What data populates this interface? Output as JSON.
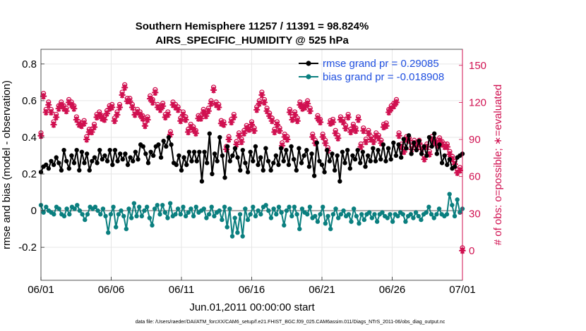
{
  "chart_data": {
    "type": "line",
    "title_line1": "Southern Hemisphere 11257 / 11391 = 98.824%",
    "title_line2": "AIRS_SPECIFIC_HUMIDITY @ 525 hPa",
    "xlabel": "Jun.01,2011 00:00:00 start",
    "ylabel_left": "rmse and bias (model - observation)",
    "ylabel_right": "# of obs: o=possible; ∗=evaluated",
    "footnote": "data file: /Users/raeder/DAI/ATM_forcXX/CAM6_setup/f.e21.FHIST_BGC.f09_025.CAM6assim.011/Diags_NTrS_2011-06/obs_diag_output.nc",
    "x_tick_labels": [
      "06/01",
      "06/06",
      "06/11",
      "06/16",
      "06/21",
      "06/26",
      "07/01"
    ],
    "x_tick_days": [
      0,
      5,
      10,
      15,
      20,
      25,
      30
    ],
    "x_range_days": [
      0,
      30
    ],
    "y_left": {
      "ticks": [
        -0.2,
        0,
        0.2,
        0.4,
        0.6,
        0.8
      ],
      "tick_labels": [
        "-0.2",
        "0",
        "0.2",
        "0.4",
        "0.6",
        "0.8"
      ],
      "range": [
        -0.38,
        0.88
      ]
    },
    "y_right": {
      "ticks": [
        0,
        30,
        60,
        90,
        120,
        150
      ],
      "tick_labels": [
        "0",
        "30",
        "60",
        "90",
        "120",
        "150"
      ],
      "range": [
        -24,
        163
      ]
    },
    "grid": true,
    "legend_position": "top-right",
    "colors": {
      "rmse": "#000000",
      "bias": "#0a7f7f",
      "obs": "#d01050",
      "legend_text": "#1f4fe0",
      "zero_line": "#aaaaaa"
    },
    "series": [
      {
        "name": "rmse grand pr = 0.29085",
        "axis": "left",
        "color": "#000000",
        "values": [
          0.21,
          0.24,
          0.25,
          0.23,
          0.27,
          0.25,
          0.29,
          0.26,
          0.22,
          0.33,
          0.27,
          0.23,
          0.3,
          0.26,
          0.33,
          0.22,
          0.32,
          0.26,
          0.31,
          0.22,
          0.27,
          0.29,
          0.26,
          0.33,
          0.28,
          0.3,
          0.27,
          0.33,
          0.25,
          0.33,
          0.27,
          0.31,
          0.28,
          0.31,
          0.25,
          0.29,
          0.27,
          0.32,
          0.28,
          0.36,
          0.35,
          0.31,
          0.26,
          0.32,
          0.3,
          0.35,
          0.36,
          0.29,
          0.38,
          0.35,
          0.4,
          0.36,
          0.26,
          0.25,
          0.3,
          0.22,
          0.29,
          0.25,
          0.32,
          0.27,
          0.32,
          0.27,
          0.32,
          0.16,
          0.32,
          0.26,
          0.42,
          0.2,
          0.31,
          0.27,
          0.4,
          0.3,
          0.18,
          0.35,
          0.27,
          0.3,
          0.34,
          0.29,
          0.22,
          0.33,
          0.26,
          0.21,
          0.32,
          0.27,
          0.35,
          0.25,
          0.29,
          0.22,
          0.34,
          0.27,
          0.22,
          0.26,
          0.3,
          0.25,
          0.34,
          0.27,
          0.33,
          0.25,
          0.35,
          0.28,
          0.22,
          0.34,
          0.26,
          0.3,
          0.33,
          0.24,
          0.31,
          0.19,
          0.37,
          0.27,
          0.25,
          0.21,
          0.33,
          0.27,
          0.31,
          0.22,
          0.3,
          0.16,
          0.32,
          0.26,
          0.33,
          0.23,
          0.3,
          0.28,
          0.33,
          0.26,
          0.32,
          0.24,
          0.3,
          0.27,
          0.34,
          0.27,
          0.33,
          0.28,
          0.36,
          0.27,
          0.34,
          0.28,
          0.37,
          0.3,
          0.36,
          0.29,
          0.39,
          0.34,
          0.41,
          0.31,
          0.37,
          0.33,
          0.38,
          0.31,
          0.35,
          0.3,
          0.4,
          0.35,
          0.42,
          0.31,
          0.36,
          0.26,
          0.3,
          0.25,
          0.28,
          0.23,
          0.24,
          0.29,
          0.3,
          0.31
        ]
      },
      {
        "name": "bias grand pr = -0.018908",
        "axis": "left",
        "color": "#0a7f7f",
        "values": [
          0.03,
          -0.01,
          0.02,
          0.0,
          -0.01,
          -0.02,
          0.02,
          0.01,
          -0.02,
          -0.03,
          0.01,
          -0.02,
          0.02,
          0.01,
          0.03,
          0.0,
          -0.02,
          -0.05,
          -0.02,
          0.02,
          0.01,
          0.02,
          0.0,
          -0.02,
          0.01,
          -0.03,
          -0.12,
          -0.02,
          0.02,
          -0.09,
          -0.02,
          0.0,
          -0.03,
          -0.1,
          0.01,
          -0.04,
          0.04,
          -0.03,
          0.02,
          -0.03,
          0.0,
          0.02,
          -0.04,
          -0.08,
          0.01,
          0.03,
          -0.02,
          0.03,
          -0.01,
          -0.04,
          0.04,
          -0.03,
          -0.02,
          0.01,
          -0.02,
          0.02,
          -0.03,
          -0.01,
          0.01,
          -0.03,
          0.02,
          -0.01,
          0.0,
          0.01,
          -0.04,
          -0.02,
          0.02,
          -0.03,
          -0.01,
          0.0,
          -0.05,
          0.02,
          -0.09,
          0.01,
          -0.14,
          -0.04,
          -0.12,
          -0.02,
          -0.14,
          0.01,
          -0.05,
          -0.02,
          0.02,
          -0.03,
          0.0,
          -0.02,
          0.02,
          0.03,
          0.0,
          -0.04,
          0.01,
          -0.02,
          0.02,
          -0.01,
          -0.08,
          0.0,
          0.02,
          -0.03,
          0.02,
          -0.02,
          -0.1,
          0.01,
          -0.01,
          -0.02,
          0.02,
          -0.04,
          -0.03,
          -0.06,
          -0.02,
          0.02,
          -0.07,
          -0.03,
          -0.1,
          -0.02,
          0.01,
          -0.04,
          -0.02,
          0.0,
          -0.03,
          -0.02,
          -0.06,
          0.01,
          -0.03,
          -0.07,
          -0.02,
          -0.05,
          -0.02,
          -0.01,
          -0.04,
          -0.02,
          -0.06,
          -0.02,
          -0.01,
          -0.03,
          -0.04,
          -0.02,
          -0.06,
          -0.02,
          -0.03,
          -0.01,
          -0.02,
          -0.06,
          -0.03,
          -0.02,
          -0.04,
          -0.01,
          -0.03,
          -0.05,
          -0.02,
          -0.01,
          0.02,
          -0.02,
          -0.04,
          -0.02,
          0.01,
          -0.02,
          -0.03,
          -0.02,
          0.09,
          0.03,
          -0.03,
          0.06,
          -0.01,
          0.01
        ]
      },
      {
        "name": "possible",
        "axis": "right",
        "marker": "o",
        "color": "#d01050",
        "values": [
          93,
          125,
          112,
          118,
          112,
          102,
          108,
          115,
          118,
          115,
          113,
          120,
          118,
          115,
          106,
          102,
          101,
          103,
          90,
          96,
          96,
          100,
          108,
          110,
          107,
          106,
          111,
          115,
          116,
          105,
          110,
          116,
          126,
          132,
          121,
          121,
          116,
          110,
          112,
          110,
          107,
          101,
          106,
          123,
          120,
          128,
          116,
          114,
          117,
          108,
          110,
          94,
          118,
          116,
          114,
          105,
          110,
          106,
          96,
          100,
          98,
          95,
          107,
          107,
          112,
          109,
          113,
          119,
          130,
          118,
          116,
          103,
          102,
          82,
          90,
          104,
          108,
          86,
          93,
          88,
          95,
          99,
          98,
          102,
          97,
          114,
          119,
          126,
          120,
          113,
          109,
          105,
          96,
          102,
          97,
          85,
          92,
          90,
          112,
          106,
          110,
          105,
          118,
          115,
          116,
          119,
          113,
          92,
          87,
          107,
          104,
          92,
          87,
          81,
          103,
          104,
          95,
          91,
          106,
          104,
          99,
          108,
          96,
          100,
          97,
          106,
          84,
          97,
          88,
          95,
          90,
          88,
          93,
          91,
          87,
          100,
          101,
          112,
          115,
          117,
          120,
          93,
          84,
          80,
          90,
          89,
          82,
          87,
          84,
          87,
          82,
          74,
          84,
          78,
          90,
          88,
          85,
          89,
          86,
          84,
          84,
          78,
          74,
          70,
          63,
          65,
          0
        ]
      },
      {
        "name": "evaluated",
        "axis": "right",
        "marker": "*",
        "color": "#d01050",
        "values": [
          93,
          125,
          112,
          118,
          112,
          102,
          108,
          115,
          118,
          115,
          113,
          120,
          118,
          115,
          106,
          102,
          101,
          103,
          90,
          96,
          96,
          100,
          108,
          110,
          107,
          106,
          111,
          115,
          116,
          105,
          110,
          116,
          126,
          132,
          121,
          121,
          116,
          110,
          112,
          110,
          107,
          101,
          106,
          123,
          120,
          128,
          116,
          114,
          117,
          108,
          110,
          94,
          118,
          116,
          114,
          105,
          110,
          106,
          96,
          100,
          98,
          95,
          107,
          107,
          112,
          109,
          113,
          119,
          130,
          118,
          116,
          103,
          102,
          82,
          90,
          104,
          108,
          86,
          93,
          88,
          95,
          99,
          98,
          102,
          97,
          114,
          119,
          126,
          120,
          113,
          109,
          105,
          96,
          102,
          97,
          85,
          92,
          90,
          112,
          106,
          110,
          105,
          118,
          115,
          116,
          119,
          113,
          92,
          87,
          107,
          104,
          92,
          87,
          81,
          103,
          104,
          95,
          91,
          106,
          104,
          99,
          108,
          96,
          100,
          97,
          106,
          84,
          97,
          88,
          95,
          90,
          88,
          93,
          91,
          87,
          100,
          101,
          112,
          115,
          117,
          120,
          93,
          84,
          80,
          90,
          89,
          82,
          87,
          84,
          87,
          82,
          74,
          84,
          78,
          90,
          88,
          85,
          89,
          86,
          84,
          84,
          78,
          74,
          70,
          63,
          65,
          0
        ]
      }
    ]
  }
}
